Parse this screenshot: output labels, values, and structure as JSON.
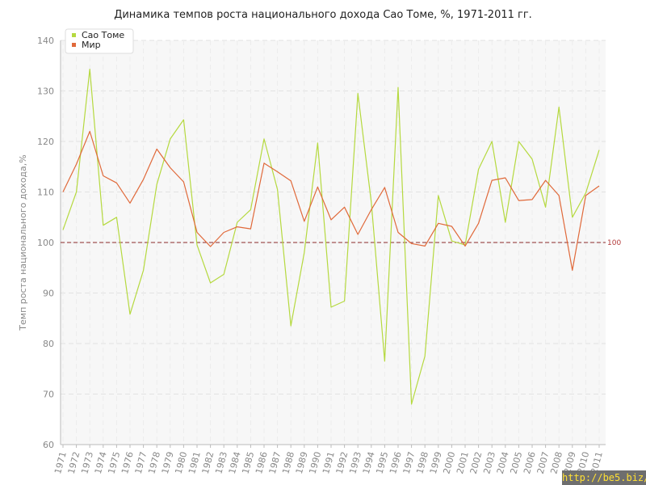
{
  "chart_data": {
    "type": "line",
    "title": "Динамика темпов роста национального дохода Сао Томе, %, 1971-2011 гг.",
    "xlabel": "",
    "ylabel": "Темп роста национального дохода,%",
    "ylim": [
      60,
      140
    ],
    "yticks": [
      60,
      70,
      80,
      90,
      100,
      110,
      120,
      130,
      140
    ],
    "x": [
      "1971",
      "1972",
      "1973",
      "1974",
      "1975",
      "1976",
      "1977",
      "1978",
      "1979",
      "1980",
      "1981",
      "1982",
      "1983",
      "1984",
      "1985",
      "1986",
      "1987",
      "1988",
      "1989",
      "1990",
      "1991",
      "1992",
      "1993",
      "1994",
      "1995",
      "1996",
      "1997",
      "1998",
      "1999",
      "2000",
      "2001",
      "2002",
      "2003",
      "2004",
      "2005",
      "2006",
      "2007",
      "2008",
      "2009",
      "2010",
      "2011"
    ],
    "series": [
      {
        "name": "Сао Томе",
        "color": "#b5d93f",
        "values": [
          102.5,
          110,
          134.3,
          103.4,
          105,
          85.8,
          94.5,
          111.5,
          120.5,
          124.3,
          99.5,
          92,
          93.7,
          104,
          106.5,
          120.5,
          110.5,
          83.5,
          98,
          119.7,
          87.2,
          88.4,
          129.5,
          108,
          76.5,
          130.7,
          68,
          77.5,
          109.3,
          100.3,
          99.5,
          114.5,
          120,
          104,
          120,
          116.5,
          107,
          126.8,
          105,
          109.8,
          118.3
        ]
      },
      {
        "name": "Мир",
        "color": "#e0693a",
        "values": [
          110,
          115.5,
          122,
          113.2,
          111.8,
          107.8,
          112.5,
          118.5,
          114.8,
          112,
          102,
          99.2,
          102,
          103.1,
          102.7,
          115.7,
          114,
          112.2,
          104.2,
          111,
          104.5,
          107,
          101.6,
          106.5,
          110.9,
          102,
          99.8,
          99.3,
          103.8,
          103.2,
          99.3,
          103.8,
          112.3,
          112.8,
          108.3,
          108.5,
          112.3,
          109.3,
          94.5,
          109.3,
          111.2
        ]
      }
    ],
    "reference_line": {
      "value": 100,
      "label": "100",
      "color": "#8b2a2a"
    },
    "grid": true,
    "legend": "top-left"
  },
  "watermark": "http://be5.biz/"
}
